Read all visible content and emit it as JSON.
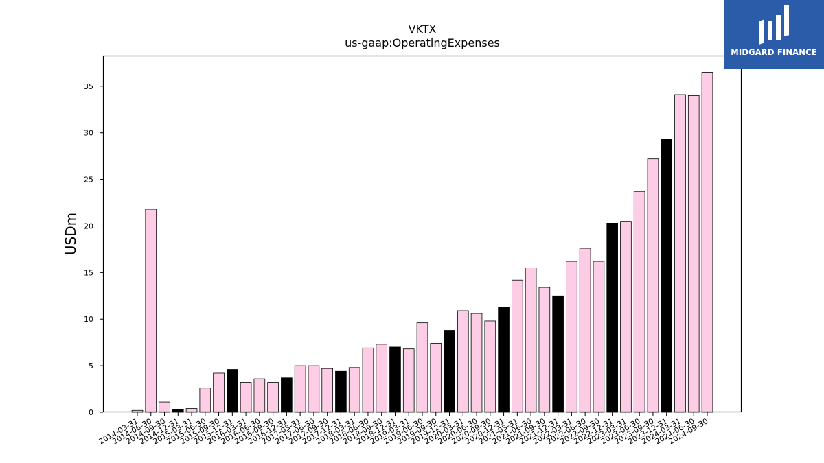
{
  "logo": {
    "text": "MIDGARD FINANCE"
  },
  "colors": {
    "normal": "#fccde5",
    "highlight": "#000000",
    "edge": "#000000",
    "logo_bg": "#2a5caa"
  },
  "chart_data": {
    "type": "bar",
    "title": "VKTX",
    "subtitle": "us-gaap:OperatingExpenses",
    "xlabel": "",
    "ylabel": "USDm",
    "ylim": [
      0,
      38.3
    ],
    "yticks": [
      0,
      5,
      10,
      15,
      20,
      25,
      30,
      35
    ],
    "grid": false,
    "categories": [
      "2014-03-31",
      "2014-06-30",
      "2014-09-30",
      "2014-12-31",
      "2015-03-31",
      "2015-06-30",
      "2015-09-30",
      "2015-12-31",
      "2016-03-31",
      "2016-06-30",
      "2016-09-30",
      "2016-12-31",
      "2017-03-31",
      "2017-06-30",
      "2017-09-30",
      "2017-12-31",
      "2018-03-31",
      "2018-06-30",
      "2018-09-30",
      "2018-12-31",
      "2019-03-31",
      "2019-06-30",
      "2019-09-30",
      "2019-12-31",
      "2020-03-31",
      "2020-06-30",
      "2020-09-30",
      "2020-12-31",
      "2021-03-31",
      "2021-06-30",
      "2021-09-30",
      "2021-12-31",
      "2022-03-31",
      "2022-06-30",
      "2022-09-30",
      "2022-12-31",
      "2023-03-31",
      "2023-06-30",
      "2023-09-30",
      "2023-12-31",
      "2024-03-31",
      "2024-06-30",
      "2024-09-30"
    ],
    "values": [
      0.2,
      21.8,
      1.1,
      0.3,
      0.4,
      2.6,
      4.2,
      4.6,
      3.2,
      3.6,
      3.2,
      3.7,
      5.0,
      5.0,
      4.7,
      4.4,
      4.8,
      6.9,
      7.3,
      7.0,
      6.8,
      9.6,
      7.4,
      8.8,
      10.9,
      10.6,
      9.8,
      11.3,
      14.2,
      15.5,
      13.4,
      12.5,
      16.2,
      17.6,
      16.2,
      20.3,
      20.5,
      23.7,
      27.2,
      29.3,
      34.1,
      34.0,
      36.5
    ],
    "highlight_categories": [
      "2014-12-31",
      "2015-12-31",
      "2016-12-31",
      "2017-12-31",
      "2018-12-31",
      "2019-12-31",
      "2020-12-31",
      "2021-12-31",
      "2022-12-31",
      "2023-12-31"
    ]
  }
}
